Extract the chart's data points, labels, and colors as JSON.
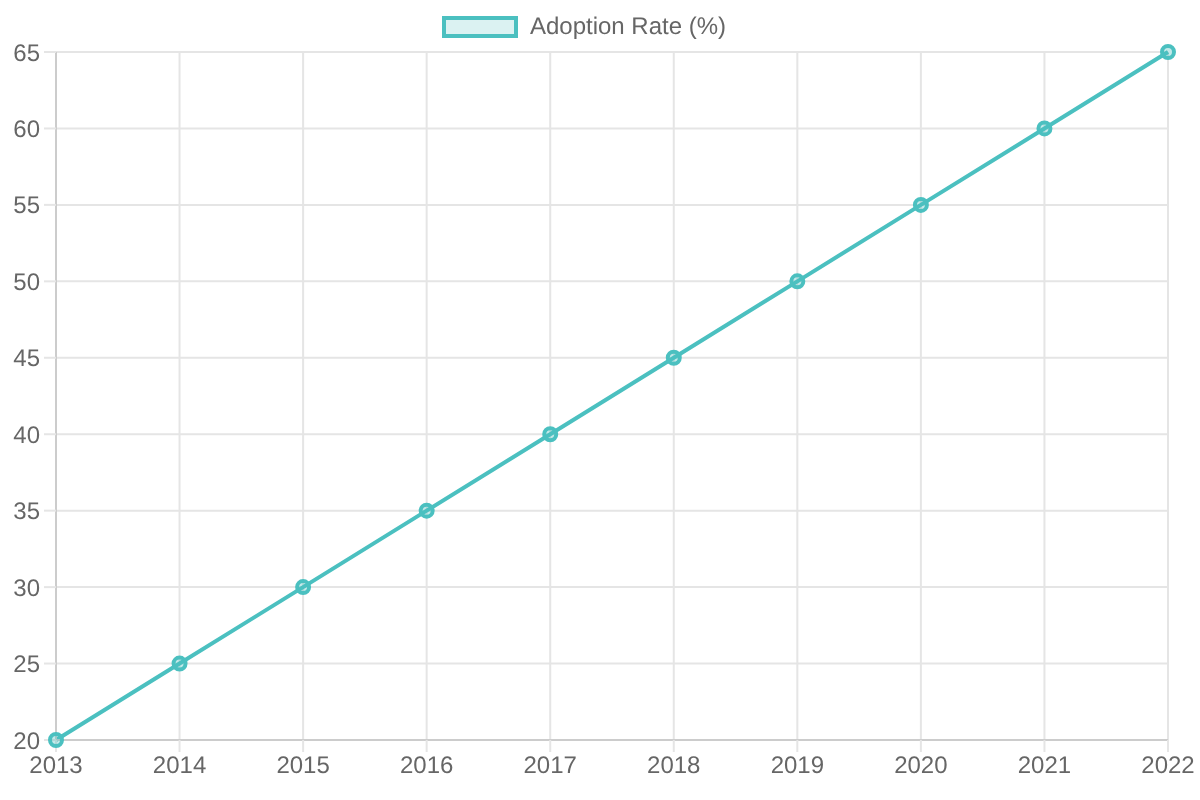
{
  "chart_data": {
    "type": "line",
    "categories": [
      "2013",
      "2014",
      "2015",
      "2016",
      "2017",
      "2018",
      "2019",
      "2020",
      "2021",
      "2022"
    ],
    "series": [
      {
        "name": "Adoption Rate (%)",
        "color": "#4bc0c0",
        "values": [
          20,
          25,
          30,
          35,
          40,
          45,
          50,
          55,
          60,
          65
        ]
      }
    ],
    "ylim": [
      20,
      65
    ],
    "yticks": [
      20,
      25,
      30,
      35,
      40,
      45,
      50,
      55,
      60,
      65
    ],
    "grid": true,
    "legend": "top",
    "marker": "circle"
  }
}
